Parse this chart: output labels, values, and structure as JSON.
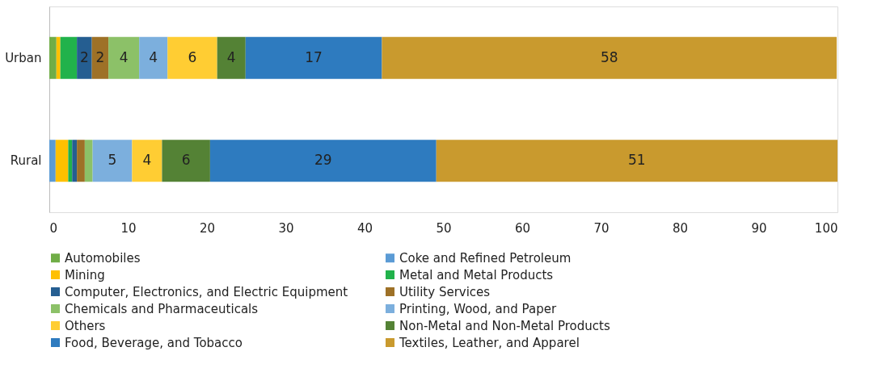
{
  "chart_data": {
    "type": "bar",
    "orientation": "horizontal",
    "stacked": true,
    "categories": [
      "Urban",
      "Rural"
    ],
    "xlim": [
      0,
      100
    ],
    "xticks": [
      0,
      10,
      20,
      30,
      40,
      50,
      60,
      70,
      80,
      90,
      100
    ],
    "grid": false,
    "legend": "bottom",
    "series": [
      {
        "name": "Automobiles",
        "color": "#70ad47",
        "values": [
          0.9,
          0
        ]
      },
      {
        "name": "Coke and Refined Petroleum",
        "color": "#5b9bd5",
        "values": [
          0,
          0.8
        ]
      },
      {
        "name": "Mining",
        "color": "#ffc000",
        "values": [
          0.5,
          1.6
        ]
      },
      {
        "name": "Metal and Metal Products",
        "color": "#21b24b",
        "values": [
          2.1,
          0.5
        ]
      },
      {
        "name": "Computer,  Electronics, and Electric Equipment",
        "color": "#255e91",
        "values": [
          1.9,
          0.6
        ],
        "value_labels": [
          "2",
          null
        ]
      },
      {
        "name": "Utility Services",
        "color": "#9e7127",
        "values": [
          2.1,
          1.0
        ],
        "value_labels": [
          "2",
          null
        ]
      },
      {
        "name": "Chemicals and Pharmaceuticals",
        "color": "#8cc168",
        "values": [
          3.9,
          1.0
        ],
        "value_labels": [
          "4",
          null
        ]
      },
      {
        "name": "Printing, Wood, and Paper",
        "color": "#7cafdd",
        "values": [
          3.6,
          5.0
        ],
        "value_labels": [
          "4",
          "5"
        ]
      },
      {
        "name": "Others",
        "color": "#ffcd33",
        "values": [
          6.3,
          3.8
        ],
        "value_labels": [
          "6",
          "4"
        ]
      },
      {
        "name": "Non-Metal and Non-Metal Products",
        "color": "#548235",
        "values": [
          3.6,
          6.1
        ],
        "value_labels": [
          "4",
          "6"
        ]
      },
      {
        "name": "Food, Beverage, and Tobacco",
        "color": "#2e7bbf",
        "values": [
          17.3,
          28.7
        ],
        "value_labels": [
          "17",
          "29"
        ]
      },
      {
        "name": "Textiles, Leather, and Apparel",
        "color": "#c99a2e",
        "values": [
          57.7,
          50.9
        ],
        "value_labels": [
          "58",
          "51"
        ]
      }
    ]
  }
}
